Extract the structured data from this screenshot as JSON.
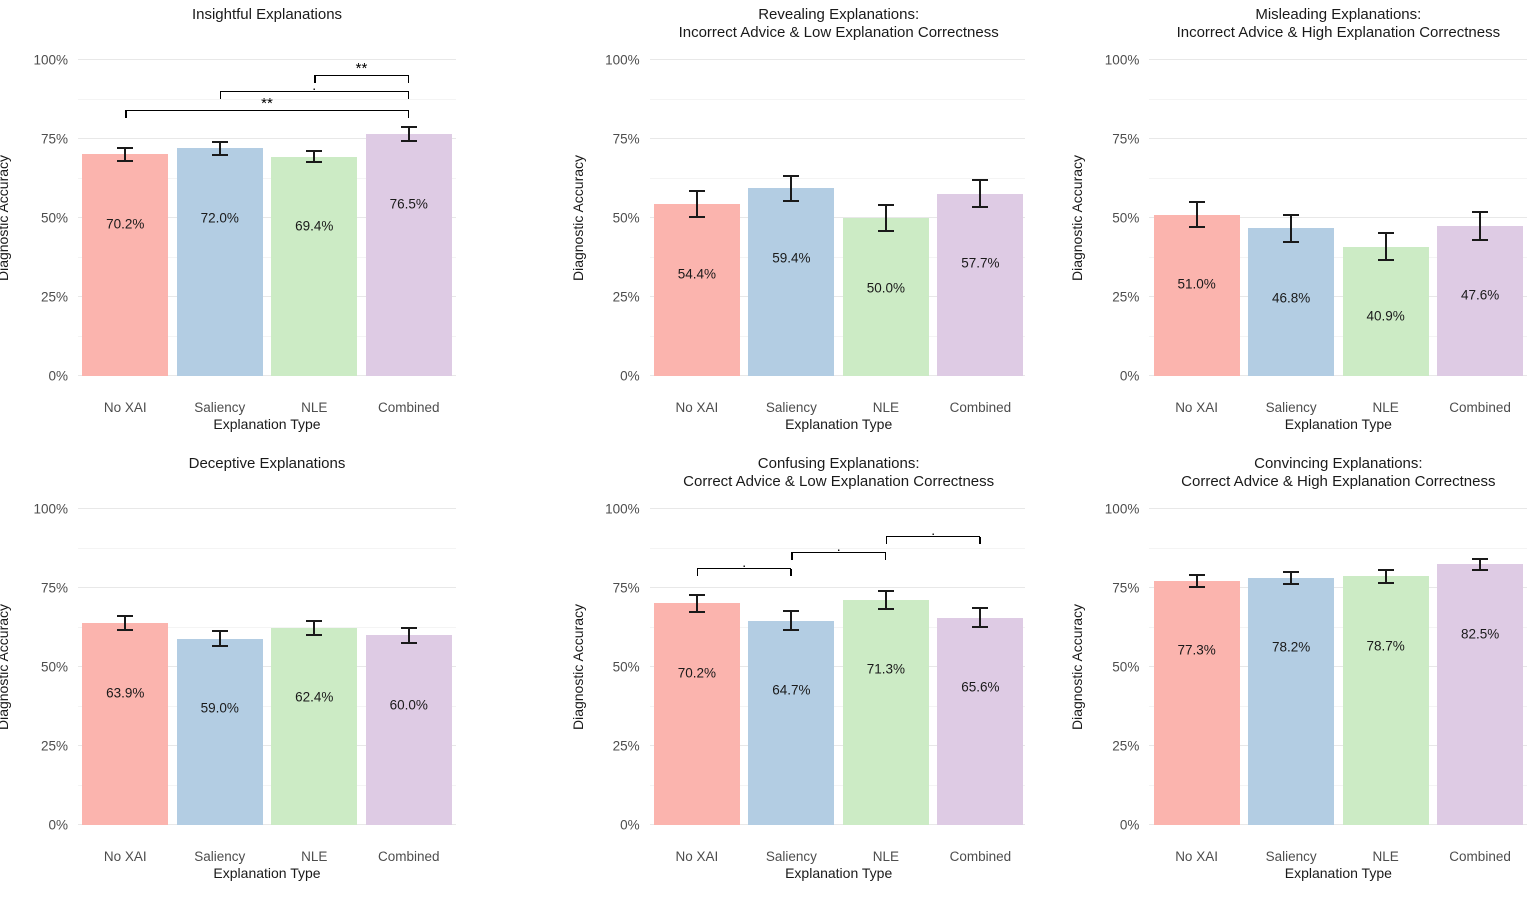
{
  "figure": {
    "background": "#FFFFFF",
    "grid_color": "#E8E8E8",
    "error_bar_color": "#1A1A1A",
    "bar_colors": [
      "#FBB4AE",
      "#B3CDE3",
      "#CCEBC5",
      "#DECBE4"
    ],
    "categories": [
      "No XAI",
      "Saliency",
      "NLE",
      "Combined"
    ],
    "y_tick_labels": [
      "0%",
      "25%",
      "50%",
      "75%",
      "100%"
    ]
  },
  "chart_data": [
    {
      "type": "bar",
      "title": "Insightful Explanations",
      "xlabel": "Explanation Type",
      "ylabel": "Diagnostic Accuracy",
      "ylim": [
        0,
        100
      ],
      "grid": true,
      "y_tick_labels": [
        "0%",
        "25%",
        "50%",
        "75%",
        "100%"
      ],
      "categories": [
        "No XAI",
        "Saliency",
        "NLE",
        "Combined"
      ],
      "values": [
        70.2,
        72.0,
        69.4,
        76.5
      ],
      "value_labels": [
        "70.2%",
        "72.0%",
        "69.4%",
        "76.5%"
      ],
      "errors": [
        2.0,
        2.2,
        1.8,
        2.2
      ],
      "significance": [
        {
          "from": 2,
          "to": 3,
          "label": "**",
          "y": 95
        },
        {
          "from": 1,
          "to": 3,
          "label": ".",
          "y": 90
        },
        {
          "from": 0,
          "to": 3,
          "label": "**",
          "y": 84
        }
      ]
    },
    {
      "type": "bar",
      "title": "Revealing Explanations:\nIncorrect Advice & Low Explanation Correctness",
      "xlabel": "Explanation Type",
      "ylabel": "Diagnostic Accuracy",
      "ylim": [
        0,
        100
      ],
      "grid": true,
      "y_tick_labels": [
        "0%",
        "25%",
        "50%",
        "75%",
        "100%"
      ],
      "categories": [
        "No XAI",
        "Saliency",
        "NLE",
        "Combined"
      ],
      "values": [
        54.4,
        59.4,
        50.0,
        57.7
      ],
      "value_labels": [
        "54.4%",
        "59.4%",
        "50.0%",
        "57.7%"
      ],
      "errors": [
        4.0,
        4.0,
        4.0,
        4.2
      ],
      "significance": []
    },
    {
      "type": "bar",
      "title": "Misleading Explanations:\nIncorrect Advice & High Explanation Correctness",
      "xlabel": "Explanation Type",
      "ylabel": "Diagnostic Accuracy",
      "ylim": [
        0,
        100
      ],
      "grid": true,
      "y_tick_labels": [
        "0%",
        "25%",
        "50%",
        "75%",
        "100%"
      ],
      "categories": [
        "No XAI",
        "Saliency",
        "NLE",
        "Combined"
      ],
      "values": [
        51.0,
        46.8,
        40.9,
        47.6
      ],
      "value_labels": [
        "51.0%",
        "46.8%",
        "40.9%",
        "47.6%"
      ],
      "errors": [
        4.0,
        4.3,
        4.2,
        4.4
      ],
      "significance": []
    },
    {
      "type": "bar",
      "title": "Deceptive Explanations",
      "xlabel": "Explanation Type",
      "ylabel": "Diagnostic Accuracy",
      "ylim": [
        0,
        100
      ],
      "grid": true,
      "y_tick_labels": [
        "0%",
        "25%",
        "50%",
        "75%",
        "100%"
      ],
      "categories": [
        "No XAI",
        "Saliency",
        "NLE",
        "Combined"
      ],
      "values": [
        63.9,
        59.0,
        62.4,
        60.0
      ],
      "value_labels": [
        "63.9%",
        "59.0%",
        "62.4%",
        "60.0%"
      ],
      "errors": [
        2.2,
        2.5,
        2.3,
        2.4
      ],
      "significance": []
    },
    {
      "type": "bar",
      "title": "Confusing Explanations:\nCorrect Advice & Low Explanation Correctness",
      "xlabel": "Explanation Type",
      "ylabel": "Diagnostic Accuracy",
      "ylim": [
        0,
        100
      ],
      "grid": true,
      "y_tick_labels": [
        "0%",
        "25%",
        "50%",
        "75%",
        "100%"
      ],
      "categories": [
        "No XAI",
        "Saliency",
        "NLE",
        "Combined"
      ],
      "values": [
        70.2,
        64.7,
        71.3,
        65.6
      ],
      "value_labels": [
        "70.2%",
        "64.7%",
        "71.3%",
        "65.6%"
      ],
      "errors": [
        2.7,
        3.0,
        2.8,
        3.0
      ],
      "significance": [
        {
          "from": 0,
          "to": 1,
          "label": ".",
          "y": 81
        },
        {
          "from": 1,
          "to": 2,
          "label": ".",
          "y": 86
        },
        {
          "from": 2,
          "to": 3,
          "label": ".",
          "y": 91
        }
      ]
    },
    {
      "type": "bar",
      "title": "Convincing Explanations:\nCorrect Advice & High Explanation Correctness",
      "xlabel": "Explanation Type",
      "ylabel": "Diagnostic Accuracy",
      "ylim": [
        0,
        100
      ],
      "grid": true,
      "y_tick_labels": [
        "0%",
        "25%",
        "50%",
        "75%",
        "100%"
      ],
      "categories": [
        "No XAI",
        "Saliency",
        "NLE",
        "Combined"
      ],
      "values": [
        77.3,
        78.2,
        78.7,
        82.5
      ],
      "value_labels": [
        "77.3%",
        "78.2%",
        "78.7%",
        "82.5%"
      ],
      "errors": [
        1.9,
        2.0,
        2.0,
        1.7
      ],
      "significance": []
    }
  ]
}
